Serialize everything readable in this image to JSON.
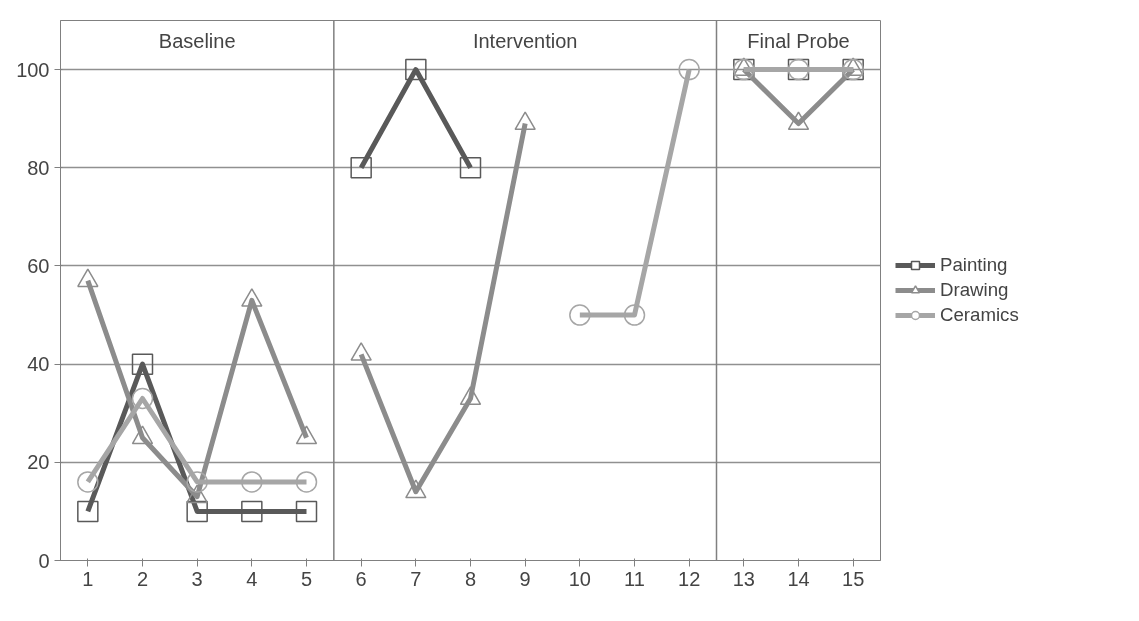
{
  "chart_data": {
    "type": "line",
    "x": [
      1,
      2,
      3,
      4,
      5,
      6,
      7,
      8,
      9,
      10,
      11,
      12,
      13,
      14,
      15
    ],
    "series": [
      {
        "name": "Painting",
        "color": "#595959",
        "marker": "square",
        "values": [
          10,
          40,
          10,
          10,
          10,
          80,
          100,
          80,
          null,
          null,
          null,
          null,
          100,
          100,
          100
        ]
      },
      {
        "name": "Drawing",
        "color": "#8c8c8c",
        "marker": "triangle",
        "values": [
          57,
          25,
          13,
          53,
          25,
          42,
          14,
          33,
          89,
          null,
          null,
          null,
          100,
          89,
          100
        ]
      },
      {
        "name": "Ceramics",
        "color": "#a6a6a6",
        "marker": "circle",
        "values": [
          16,
          33,
          16,
          16,
          16,
          null,
          null,
          null,
          null,
          50,
          50,
          100,
          100,
          100,
          100
        ]
      }
    ],
    "xlim": [
      0.5,
      15.5
    ],
    "xticks": [
      1,
      2,
      3,
      4,
      5,
      6,
      7,
      8,
      9,
      10,
      11,
      12,
      13,
      14,
      15
    ],
    "ylim": [
      0,
      110
    ],
    "yticks": [
      0,
      20,
      40,
      60,
      80,
      100
    ],
    "ref_lines": [
      {
        "axis": "x",
        "value": 5.5,
        "color": "#808080"
      },
      {
        "axis": "x",
        "value": 12.5,
        "color": "#808080"
      }
    ],
    "annotations": [
      "Baseline",
      "Intervention",
      "Final Probe"
    ],
    "grid": "y",
    "legend": "right",
    "line_style": "solid"
  }
}
